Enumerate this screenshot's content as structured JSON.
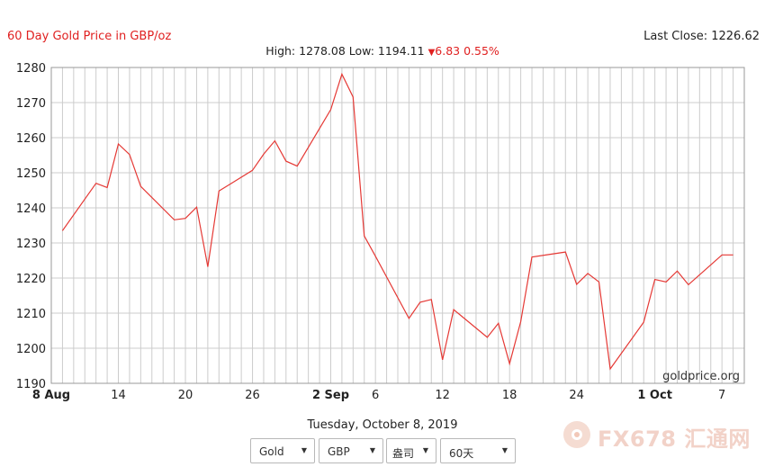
{
  "header": {
    "title": "60 Day Gold Price in GBP/oz",
    "last_close": "Last Close: 1226.62",
    "stats_prefix": "High: 1278.08 Low: 1194.11",
    "change_symbol": "▼",
    "change": "6.83 0.55%"
  },
  "watermark_site": "goldprice.org",
  "date_text": "Tuesday, October 8, 2019",
  "controls": {
    "metal": "Gold",
    "currency": "GBP",
    "unit": "盎司",
    "period": "60天"
  },
  "brand_watermark": "FX678 汇通网",
  "colors": {
    "line": "#e53935",
    "grid": "#cccccc",
    "accent": "#e02020"
  },
  "chart_data": {
    "type": "line",
    "title": "60 Day Gold Price in GBP/oz",
    "xlabel": "",
    "ylabel": "",
    "ylim": [
      1190,
      1280
    ],
    "xlim": [
      "2019-08-08",
      "2019-10-09"
    ],
    "yticks": [
      1190,
      1200,
      1210,
      1220,
      1230,
      1240,
      1250,
      1260,
      1270,
      1280
    ],
    "xticks": [
      {
        "date": "2019-08-08",
        "label": "8 Aug",
        "bold": true
      },
      {
        "date": "2019-08-14",
        "label": "14",
        "bold": false
      },
      {
        "date": "2019-08-20",
        "label": "20",
        "bold": false
      },
      {
        "date": "2019-08-26",
        "label": "26",
        "bold": false
      },
      {
        "date": "2019-09-02",
        "label": "2 Sep",
        "bold": true
      },
      {
        "date": "2019-09-06",
        "label": "6",
        "bold": false
      },
      {
        "date": "2019-09-12",
        "label": "12",
        "bold": false
      },
      {
        "date": "2019-09-18",
        "label": "18",
        "bold": false
      },
      {
        "date": "2019-09-24",
        "label": "24",
        "bold": false
      },
      {
        "date": "2019-10-01",
        "label": "1 Oct",
        "bold": true
      },
      {
        "date": "2019-10-07",
        "label": "7",
        "bold": false
      }
    ],
    "grid": true,
    "series": [
      {
        "x": [
          "2019-08-09",
          "2019-08-12",
          "2019-08-13",
          "2019-08-14",
          "2019-08-15",
          "2019-08-16",
          "2019-08-19",
          "2019-08-20",
          "2019-08-21",
          "2019-08-22",
          "2019-08-23",
          "2019-08-26",
          "2019-08-27",
          "2019-08-28",
          "2019-08-29",
          "2019-08-30",
          "2019-09-02",
          "2019-09-03",
          "2019-09-04",
          "2019-09-05",
          "2019-09-06",
          "2019-09-09",
          "2019-09-10",
          "2019-09-11",
          "2019-09-12",
          "2019-09-13",
          "2019-09-16",
          "2019-09-17",
          "2019-09-18",
          "2019-09-19",
          "2019-09-20",
          "2019-09-23",
          "2019-09-24",
          "2019-09-25",
          "2019-09-26",
          "2019-09-27",
          "2019-09-30",
          "2019-10-01",
          "2019-10-02",
          "2019-10-03",
          "2019-10-04",
          "2019-10-07",
          "2019-10-08"
        ],
        "values": [
          1233.5,
          1247.0,
          1245.8,
          1258.2,
          1255.2,
          1246.1,
          1236.6,
          1237.0,
          1240.2,
          1223.2,
          1244.8,
          1250.7,
          1255.3,
          1259.1,
          1253.3,
          1251.9,
          1268.0,
          1278.1,
          1271.6,
          1232.0,
          1226.2,
          1208.5,
          1213.1,
          1213.9,
          1196.7,
          1211.0,
          1203.1,
          1207.1,
          1195.6,
          1207.6,
          1226.0,
          1227.4,
          1218.2,
          1221.3,
          1218.9,
          1194.1,
          1207.4,
          1219.6,
          1218.9,
          1222.0,
          1218.1,
          1226.6,
          1226.6
        ]
      }
    ]
  }
}
